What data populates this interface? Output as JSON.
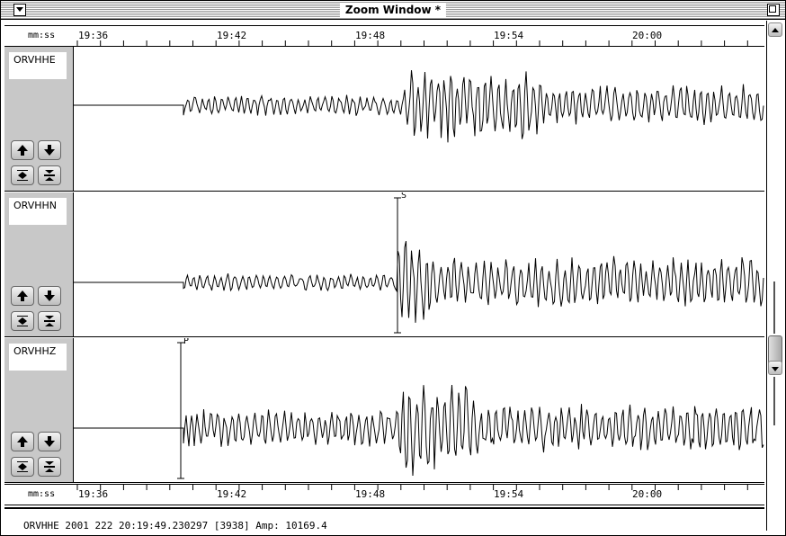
{
  "window": {
    "title": "Zoom Window *"
  },
  "axis": {
    "unit_label": "mm:ss",
    "ticks": [
      "19:36",
      "19:42",
      "19:48",
      "19:54",
      "20:00"
    ]
  },
  "channels": [
    {
      "name": "ORVHHE",
      "pick": ""
    },
    {
      "name": "ORVHHN",
      "pick": "S"
    },
    {
      "name": "ORVHHZ",
      "pick": "P"
    }
  ],
  "status": {
    "text": "ORVHHE 2001 222 20:19:49.230297 [3938] Amp: 10169.4"
  },
  "icons": {
    "up": "arrow-up-icon",
    "down": "arrow-down-icon",
    "expand": "expand-vertical-icon",
    "compress": "compress-vertical-icon"
  }
}
